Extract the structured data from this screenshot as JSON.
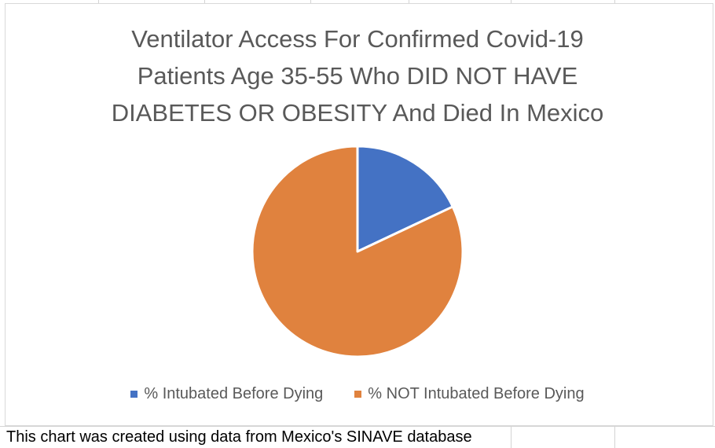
{
  "chart_data": {
    "type": "pie",
    "title_lines": [
      "Ventilator Access For Confirmed Covid-19",
      "Patients Age 35-55 Who DID NOT HAVE",
      "DIABETES OR OBESITY And Died In Mexico"
    ],
    "categories": [
      "% Intubated Before Dying",
      "% NOT Intubated Before Dying"
    ],
    "values": [
      18,
      82
    ],
    "colors": [
      "#4472c4",
      "#e0823e"
    ],
    "legend_position": "bottom"
  },
  "footer": {
    "note": "This chart was created using data from Mexico's SINAVE database"
  }
}
